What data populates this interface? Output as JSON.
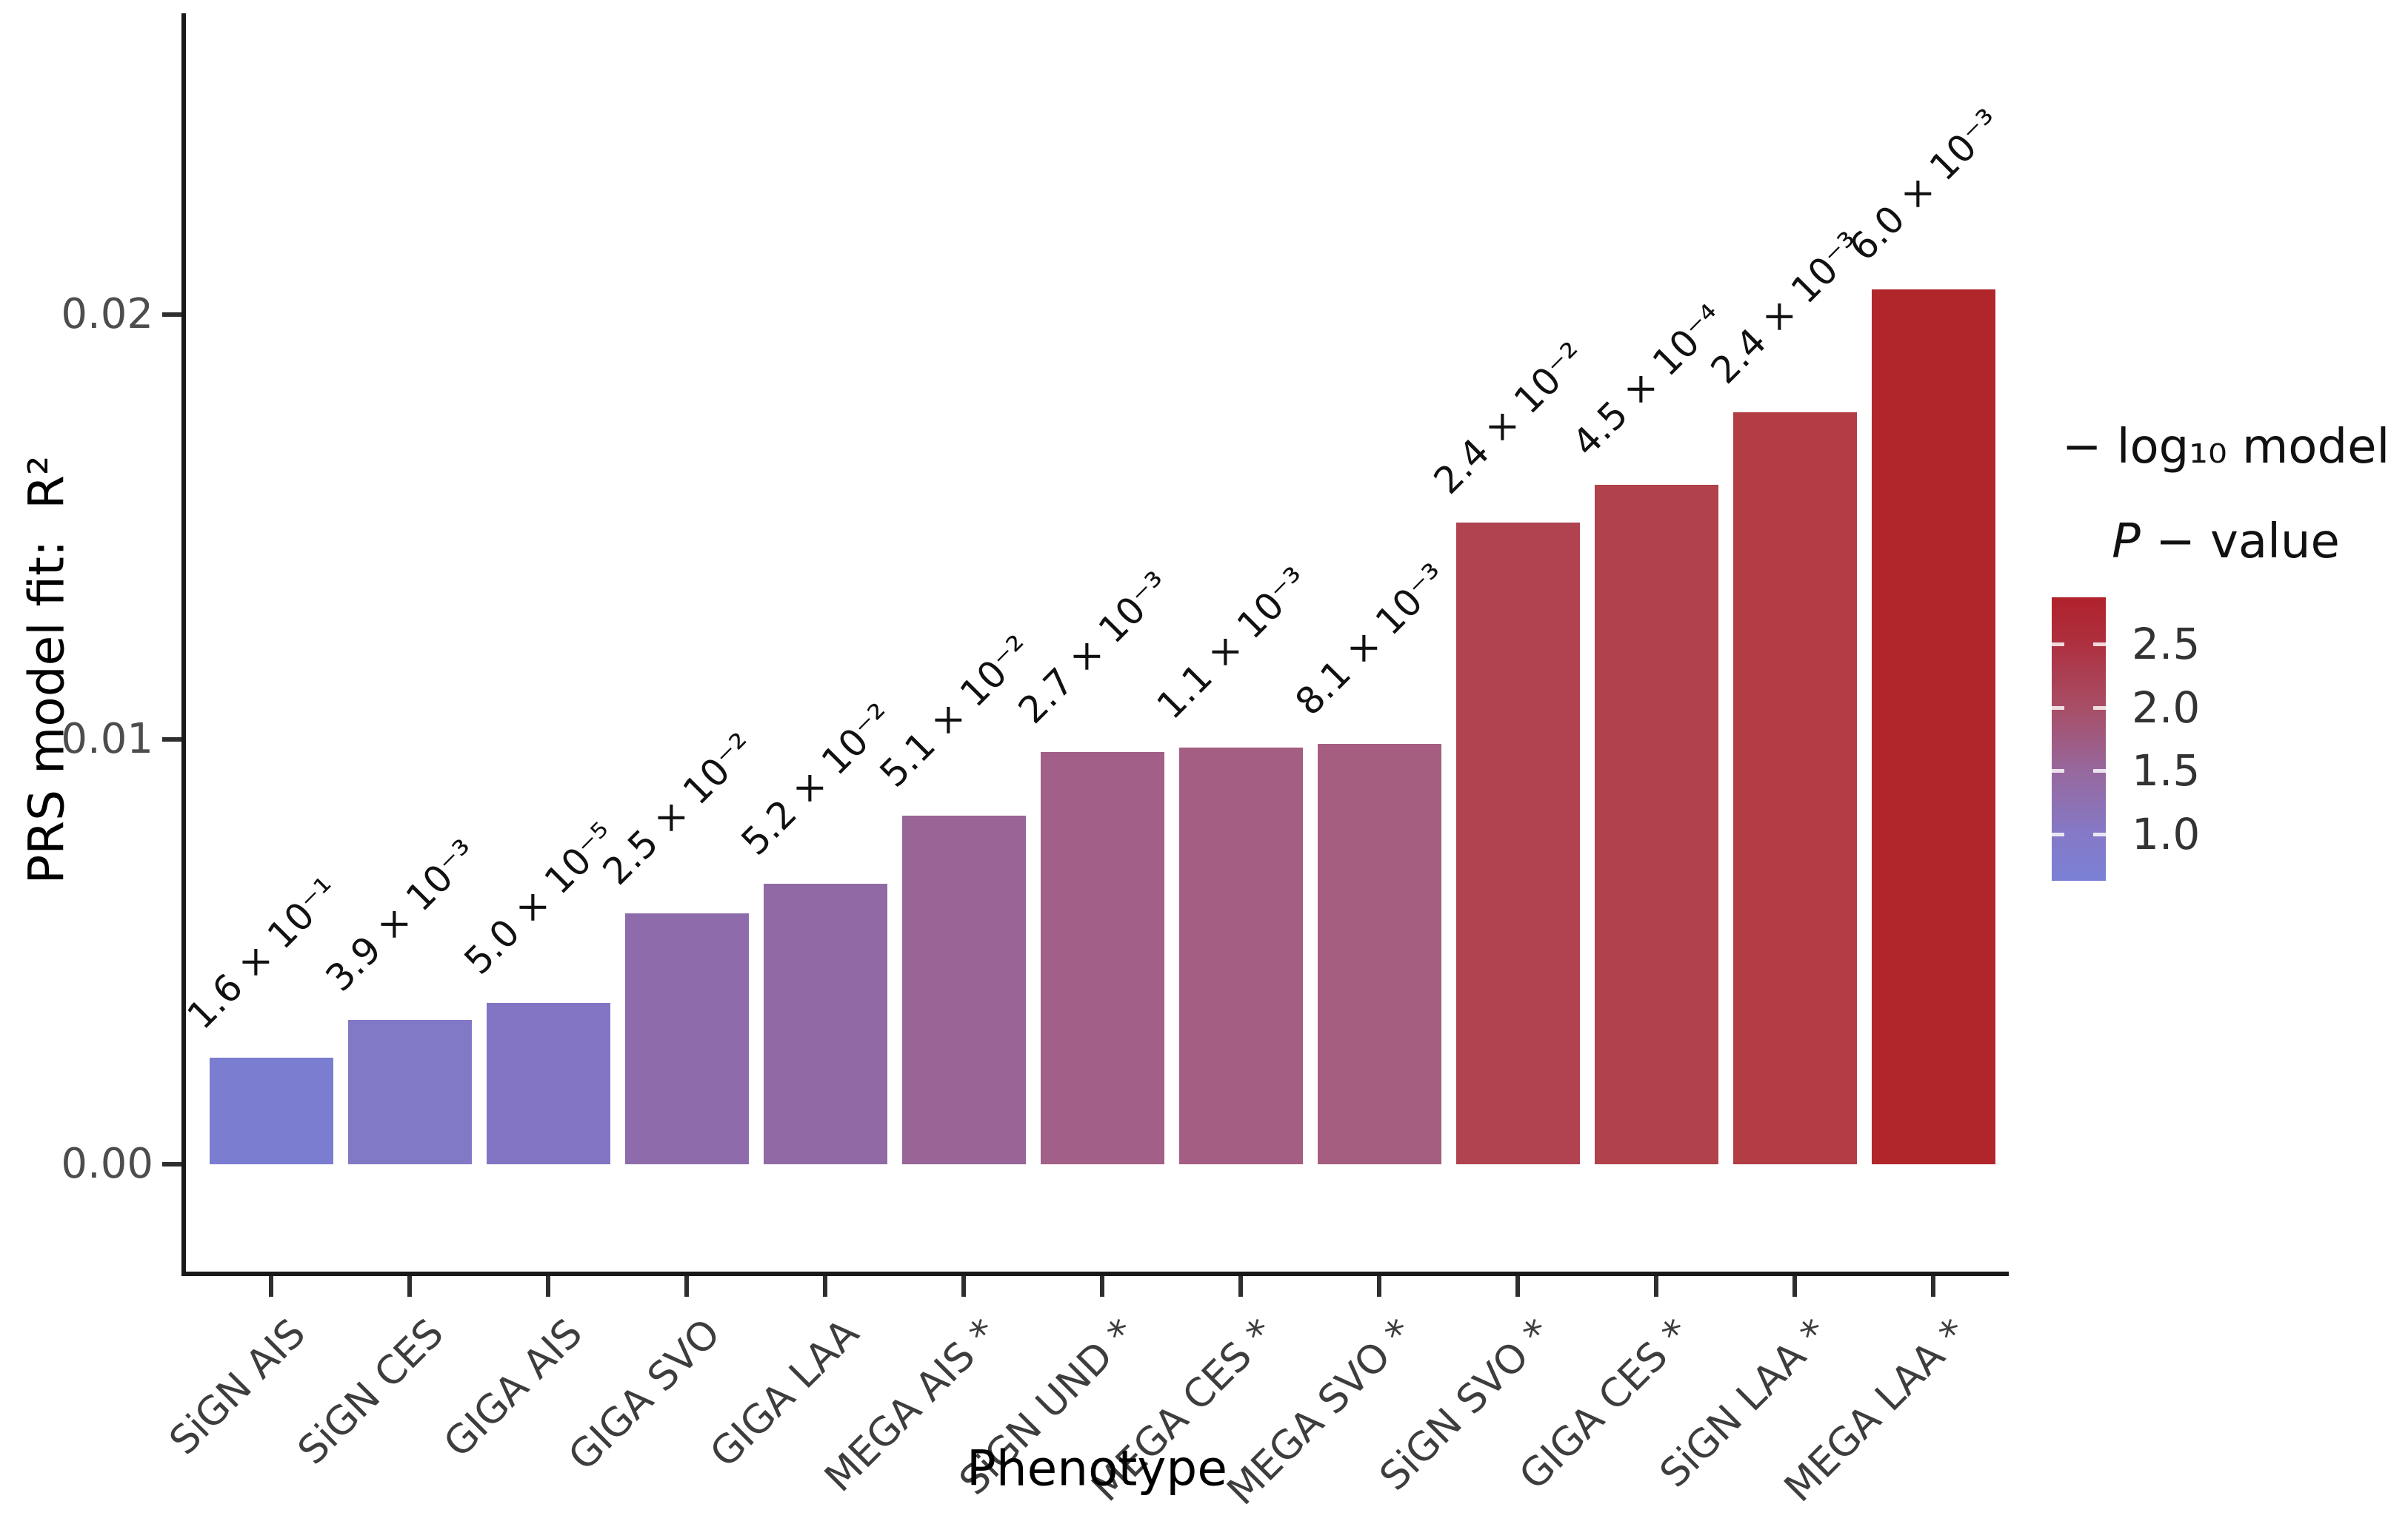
{
  "chart_data": {
    "type": "bar",
    "title": "",
    "xlabel": "Phenotype",
    "ylabel": "PRS model fit:  R²",
    "categories": [
      "SiGN AIS",
      "SiGN CES",
      "GIGA AIS",
      "GIGA SVO",
      "GIGA LAA",
      "MEGA AIS *",
      "SiGN UND *",
      "MEGA CES *",
      "MEGA SVO *",
      "SiGN SVO *",
      "GIGA CES *",
      "SiGN LAA *",
      "MEGA LAA *"
    ],
    "values": [
      0.0025,
      0.0034,
      0.0038,
      0.0059,
      0.0066,
      0.0082,
      0.0097,
      0.0098,
      0.0099,
      0.0151,
      0.016,
      0.0177,
      0.0206
    ],
    "bar_labels": [
      "1.6 × 10⁻¹",
      "3.9 × 10⁻³",
      "5.0 × 10⁻⁵",
      "2.5 × 10⁻²",
      "5.2 × 10⁻²",
      "5.1 × 10⁻²",
      "2.7 × 10⁻³",
      "1.1 × 10⁻³",
      "8.1 × 10⁻³",
      "2.4 × 10⁻²",
      "4.5 × 10⁻⁴",
      "2.4 × 10⁻³",
      "6.0 × 10⁻³"
    ],
    "bar_colors": [
      "#7b7dd0",
      "#8178c6",
      "#8375c4",
      "#8e6cac",
      "#916aa5",
      "#996597",
      "#a25f87",
      "#a45e83",
      "#a65e80",
      "#b0434f",
      "#b1414a",
      "#b23d45",
      "#b1262b"
    ],
    "yticks": [
      {
        "value": 0.0,
        "label": "0.00"
      },
      {
        "value": 0.01,
        "label": "0.01"
      },
      {
        "value": 0.02,
        "label": "0.02"
      }
    ],
    "ylim": [
      0,
      0.0272
    ],
    "grid": false,
    "legend": {
      "position": "right",
      "title_line1": "− log₁₀ model",
      "title_line2_italic": "P",
      "title_line2_rest": " − value",
      "range": [
        0.63,
        2.87
      ],
      "ticks": [
        {
          "value": 2.5,
          "label": "2.5"
        },
        {
          "value": 2.0,
          "label": "2.0"
        },
        {
          "value": 1.5,
          "label": "1.5"
        },
        {
          "value": 1.0,
          "label": "1.0"
        }
      ],
      "gradient_stops": [
        {
          "pos": 0.0,
          "color": "#7b80d6"
        },
        {
          "pos": 0.165,
          "color": "#8579c7"
        },
        {
          "pos": 0.388,
          "color": "#97689e"
        },
        {
          "pos": 0.61,
          "color": "#a84e66"
        },
        {
          "pos": 0.835,
          "color": "#ae3040"
        },
        {
          "pos": 1.0,
          "color": "#b0212b"
        }
      ]
    }
  }
}
